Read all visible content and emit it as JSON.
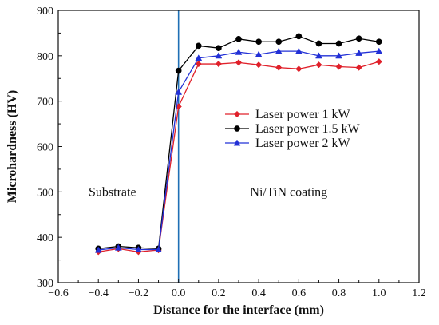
{
  "chart_data": {
    "type": "line",
    "title": "",
    "xlabel": "Distance for the interface (mm)",
    "ylabel": "Microhardness (HV)",
    "xlim": [
      -0.6,
      1.2
    ],
    "ylim": [
      300,
      900
    ],
    "x_ticks": [
      -0.6,
      -0.4,
      -0.2,
      0.0,
      0.2,
      0.4,
      0.6,
      0.8,
      1.0,
      1.2
    ],
    "x_tick_labels": [
      "−0.6",
      "−0.4",
      "−0.2",
      "0.0",
      "0.2",
      "0.4",
      "0.6",
      "0.8",
      "1.0",
      "1.2"
    ],
    "y_ticks": [
      300,
      400,
      500,
      600,
      700,
      800,
      900
    ],
    "y_tick_labels": [
      "300",
      "400",
      "500",
      "600",
      "700",
      "800",
      "900"
    ],
    "grid": false,
    "legend_position": "center-right",
    "interface_line": {
      "x": 0.0,
      "color": "#1f6fb5"
    },
    "annotations": [
      {
        "text": "Substrate",
        "x": -0.33,
        "y": 500
      },
      {
        "text": "Ni/TiN coating",
        "x": 0.55,
        "y": 500
      }
    ],
    "x": [
      -0.4,
      -0.3,
      -0.2,
      -0.1,
      0.0,
      0.1,
      0.2,
      0.3,
      0.4,
      0.5,
      0.6,
      0.7,
      0.8,
      0.9,
      1.0
    ],
    "series": [
      {
        "name": "Laser power 1 kW",
        "color": "#e0202a",
        "marker": "diamond",
        "values": [
          368,
          375,
          368,
          372,
          688,
          782,
          782,
          785,
          780,
          774,
          771,
          780,
          776,
          774,
          787
        ]
      },
      {
        "name": "Laser power 1.5 kW",
        "color": "#000000",
        "marker": "circle",
        "values": [
          375,
          380,
          377,
          375,
          767,
          822,
          817,
          837,
          831,
          831,
          843,
          827,
          827,
          838,
          831
        ]
      },
      {
        "name": "Laser power 2 kW",
        "color": "#2230d6",
        "marker": "triangle",
        "values": [
          372,
          377,
          373,
          373,
          720,
          795,
          800,
          808,
          803,
          810,
          810,
          800,
          800,
          806,
          810
        ]
      }
    ]
  }
}
